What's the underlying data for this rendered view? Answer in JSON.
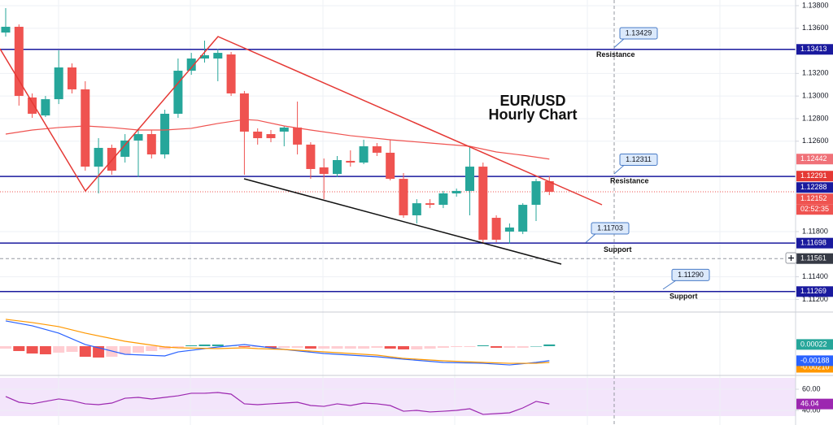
{
  "chart_data": {
    "type": "candlestick",
    "title": "EUR/USD",
    "subtitle": "Hourly Chart",
    "ylim": [
      1.11095,
      1.1385
    ],
    "yticks": [
      {
        "value": 1.138,
        "label": "1.13800"
      },
      {
        "value": 1.136,
        "label": "1.13600"
      },
      {
        "value": 1.132,
        "label": "1.13200"
      },
      {
        "value": 1.13,
        "label": "1.13000"
      },
      {
        "value": 1.128,
        "label": "1.12800"
      },
      {
        "value": 1.126,
        "label": "1.12600"
      },
      {
        "value": 1.118,
        "label": "1.11800"
      },
      {
        "value": 1.114,
        "label": "1.11400"
      },
      {
        "value": 1.112,
        "label": "1.11200"
      }
    ],
    "grid": true,
    "up_color": "#26a69a",
    "down_color": "#ef5350",
    "candles": {
      "open": [
        1.13562,
        1.13613,
        1.12987,
        1.12828,
        1.12972,
        1.13253,
        1.13059,
        1.12375,
        1.12541,
        1.12462,
        1.12606,
        1.12663,
        1.12483,
        1.12843,
        1.13224,
        1.13332,
        1.13332,
        1.13368,
        1.13023,
        1.12685,
        1.12663,
        1.12685,
        1.12721,
        1.1257,
        1.12368,
        1.1231,
        1.12426,
        1.12411,
        1.12555,
        1.12498,
        1.12267,
        1.11944,
        1.12051,
        1.12037,
        1.12138,
        1.1216,
        1.12375,
        1.11922,
        1.118,
        1.118,
        1.12037,
        1.12246
      ],
      "high": [
        1.13778,
        1.13634,
        1.13023,
        1.13001,
        1.13404,
        1.13289,
        1.13131,
        1.12627,
        1.1257,
        1.12663,
        1.12714,
        1.12699,
        1.12879,
        1.13332,
        1.13382,
        1.1349,
        1.13418,
        1.1339,
        1.13045,
        1.12714,
        1.12699,
        1.12735,
        1.12951,
        1.12591,
        1.12447,
        1.12469,
        1.12519,
        1.12613,
        1.12584,
        1.12613,
        1.12318,
        1.12087,
        1.12087,
        1.1216,
        1.12181,
        1.12555,
        1.12411,
        1.11944,
        1.11872,
        1.12051,
        1.12267,
        1.12291
      ],
      "low": [
        1.13526,
        1.12915,
        1.12807,
        1.12814,
        1.12929,
        1.13023,
        1.12339,
        1.12138,
        1.12303,
        1.12411,
        1.12282,
        1.12447,
        1.12447,
        1.12807,
        1.13188,
        1.13296,
        1.13131,
        1.13001,
        1.12303,
        1.1257,
        1.12591,
        1.12555,
        1.12483,
        1.12267,
        1.12087,
        1.12282,
        1.12375,
        1.12397,
        1.12469,
        1.12253,
        1.11922,
        1.11872,
        1.12008,
        1.12008,
        1.12109,
        1.11944,
        1.11692,
        1.11706,
        1.11692,
        1.11778,
        1.11893,
        1.12123
      ],
      "close": [
        1.13613,
        1.13001,
        1.12843,
        1.12972,
        1.13253,
        1.13059,
        1.12375,
        1.12541,
        1.12339,
        1.12606,
        1.12663,
        1.12483,
        1.12843,
        1.13224,
        1.13332,
        1.13361,
        1.13382,
        1.13023,
        1.12685,
        1.12627,
        1.12627,
        1.12721,
        1.1257,
        1.12354,
        1.1231,
        1.12433,
        1.12411,
        1.12555,
        1.12498,
        1.12267,
        1.11944,
        1.12051,
        1.12037,
        1.12138,
        1.1216,
        1.12375,
        1.11728,
        1.11728,
        1.11836,
        1.12037,
        1.12246,
        1.12152
      ]
    },
    "countdown": "02:52:35",
    "ma": {
      "color": "#ef5350",
      "x": [
        0,
        2,
        4,
        6,
        8,
        10,
        12,
        14,
        16,
        18,
        19,
        21,
        23,
        26,
        29,
        32,
        35,
        37,
        39,
        41
      ],
      "values": [
        1.12663,
        1.12699,
        1.12721,
        1.12735,
        1.12721,
        1.12699,
        1.12699,
        1.12714,
        1.12757,
        1.12792,
        1.12785,
        1.12735,
        1.12699,
        1.12649,
        1.12613,
        1.12584,
        1.12555,
        1.12505,
        1.12476,
        1.12442
      ]
    },
    "levels": {
      "color": "#1a1a9e",
      "values": [
        1.13413,
        1.12288,
        1.11698,
        1.11269
      ]
    },
    "crosshair": 1.11561,
    "callouts": [
      {
        "value": 1.13429,
        "label": "1.13429",
        "text": "Resistance"
      },
      {
        "value": 1.12311,
        "label": "1.12311",
        "text": "Resistance"
      },
      {
        "value": 1.11703,
        "label": "1.11703",
        "text": "Support"
      },
      {
        "value": 1.1129,
        "label": "1.11290",
        "text": "Support"
      }
    ],
    "macd": {
      "ylim": [
        -0.00357,
        0.0043
      ],
      "histogram": {
        "colors": [
          "#26a69a",
          "#b2dfdb",
          "#ef5350",
          "#ffcdd2"
        ],
        "values": [
          -0.00032,
          -0.00063,
          -0.00095,
          -0.00105,
          -0.00084,
          -0.00074,
          -0.00137,
          -0.00147,
          -0.00137,
          -0.00105,
          -0.00084,
          -0.00063,
          -0.00042,
          -0.00021,
          0.00011,
          0.00021,
          0.00021,
          0.00011,
          -0.00011,
          -0.00011,
          -0.00021,
          -0.00021,
          -0.00021,
          -0.00032,
          -0.00032,
          -0.00032,
          -0.00032,
          -0.00032,
          -0.00021,
          -0.00032,
          -0.00042,
          -0.00042,
          -0.00032,
          -0.00021,
          -0.00011,
          -0.00011,
          0.00011,
          -0.00021,
          -0.00021,
          -0.00021,
          0,
          0.00022
        ]
      },
      "line": {
        "color": "#2962ff",
        "x": [
          0,
          2,
          4,
          6,
          9,
          12,
          13,
          16,
          18,
          19,
          21,
          24,
          28,
          30,
          33,
          36,
          38,
          40,
          41
        ],
        "values": [
          0.00326,
          0.00263,
          0.00168,
          0.00021,
          -0.00105,
          -0.00126,
          -0.00074,
          -0.00011,
          0.00021,
          0,
          -0.00042,
          -0.00095,
          -0.00137,
          -0.00168,
          -0.0021,
          -0.00221,
          -0.00242,
          -0.0021,
          -0.00188
        ]
      },
      "signal": {
        "color": "#ff9800",
        "x": [
          0,
          2,
          4,
          6,
          9,
          12,
          13,
          16,
          18,
          19,
          21,
          24,
          28,
          30,
          33,
          36,
          38,
          40,
          41
        ],
        "values": [
          0.00347,
          0.00305,
          0.00252,
          0.00168,
          0.00063,
          -0.00011,
          -0.00021,
          -0.00032,
          -0.00021,
          -0.00032,
          -0.00042,
          -0.00074,
          -0.00116,
          -0.00158,
          -0.00189,
          -0.0021,
          -0.00221,
          -0.00221,
          -0.0021
        ],
        "value_labels": [
          null,
          null,
          null,
          null,
          null,
          null,
          null,
          null,
          null,
          null,
          null,
          null,
          null,
          null,
          null,
          null,
          null,
          null,
          "-0.00210"
        ]
      }
    },
    "rsi": {
      "color": "#9c27b0",
      "ylim": [
        26.15,
        70.77
      ],
      "yticks": [
        {
          "value": 60,
          "label": "60.00"
        },
        {
          "value": 40,
          "label": "40.00"
        }
      ],
      "values": [
        53.1,
        47.7,
        46.2,
        48.5,
        50.8,
        49.2,
        46.2,
        45.4,
        46.9,
        51.5,
        52.3,
        50.8,
        52.3,
        53.8,
        56.2,
        56.2,
        56.9,
        55.4,
        46.2,
        45.4,
        46.2,
        46.9,
        47.7,
        44.6,
        43.8,
        46.2,
        44.6,
        46.9,
        46.2,
        44.6,
        39.2,
        40,
        38.5,
        39.2,
        40,
        41.5,
        36.2,
        36.9,
        37.7,
        42.3,
        48.5,
        46.04
      ]
    }
  }
}
